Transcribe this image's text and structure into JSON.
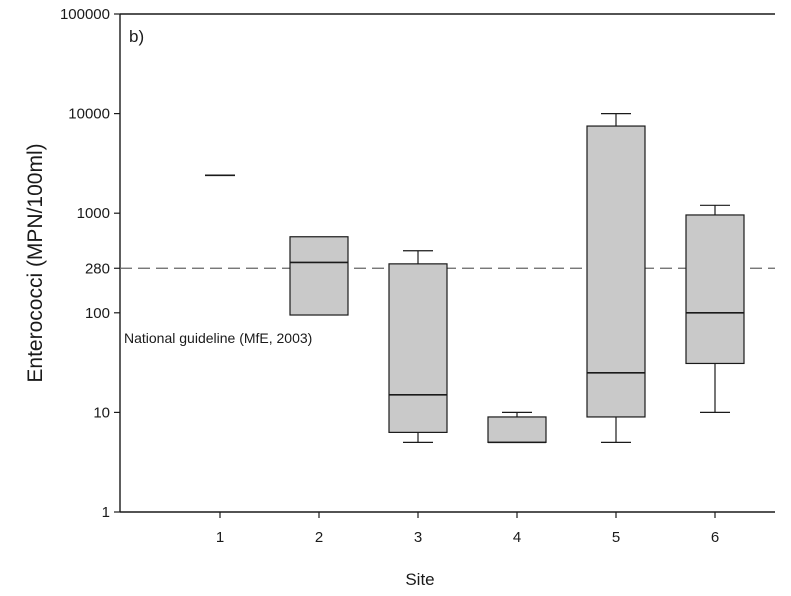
{
  "chart_data": {
    "type": "box",
    "panel_label": "b)",
    "xlabel": "Site",
    "ylabel": "Enterococci (MPN/100ml)",
    "yscale": "log",
    "ylim": [
      1,
      100000
    ],
    "yticks": [
      {
        "value": 1,
        "label": "1"
      },
      {
        "value": 10,
        "label": "10"
      },
      {
        "value": 100,
        "label": "100"
      },
      {
        "value": 280,
        "label": "280"
      },
      {
        "value": 1000,
        "label": "1000"
      },
      {
        "value": 10000,
        "label": "10000"
      },
      {
        "value": 100000,
        "label": "100000"
      }
    ],
    "categories": [
      "1",
      "2",
      "3",
      "4",
      "5",
      "6"
    ],
    "boxes": [
      {
        "site": "1",
        "min": 2400,
        "q1": 2400,
        "median": 2400,
        "q3": 2400,
        "max": 2400
      },
      {
        "site": "2",
        "min": 95,
        "q1": 95,
        "median": 320,
        "q3": 580,
        "max": 580
      },
      {
        "site": "3",
        "min": 5,
        "q1": 6.3,
        "median": 15,
        "q3": 310,
        "max": 420
      },
      {
        "site": "4",
        "min": 5,
        "q1": 5,
        "median": 5,
        "q3": 9,
        "max": 10
      },
      {
        "site": "5",
        "min": 5,
        "q1": 9,
        "median": 25,
        "q3": 7500,
        "max": 10000
      },
      {
        "site": "6",
        "min": 10,
        "q1": 31,
        "median": 100,
        "q3": 960,
        "max": 1200
      }
    ],
    "reference_line": {
      "value": 280,
      "label": "National guideline (MfE, 2003)"
    },
    "box_fill": "#c9c9c9",
    "line_color": "#1a1a1a",
    "grid": false
  }
}
